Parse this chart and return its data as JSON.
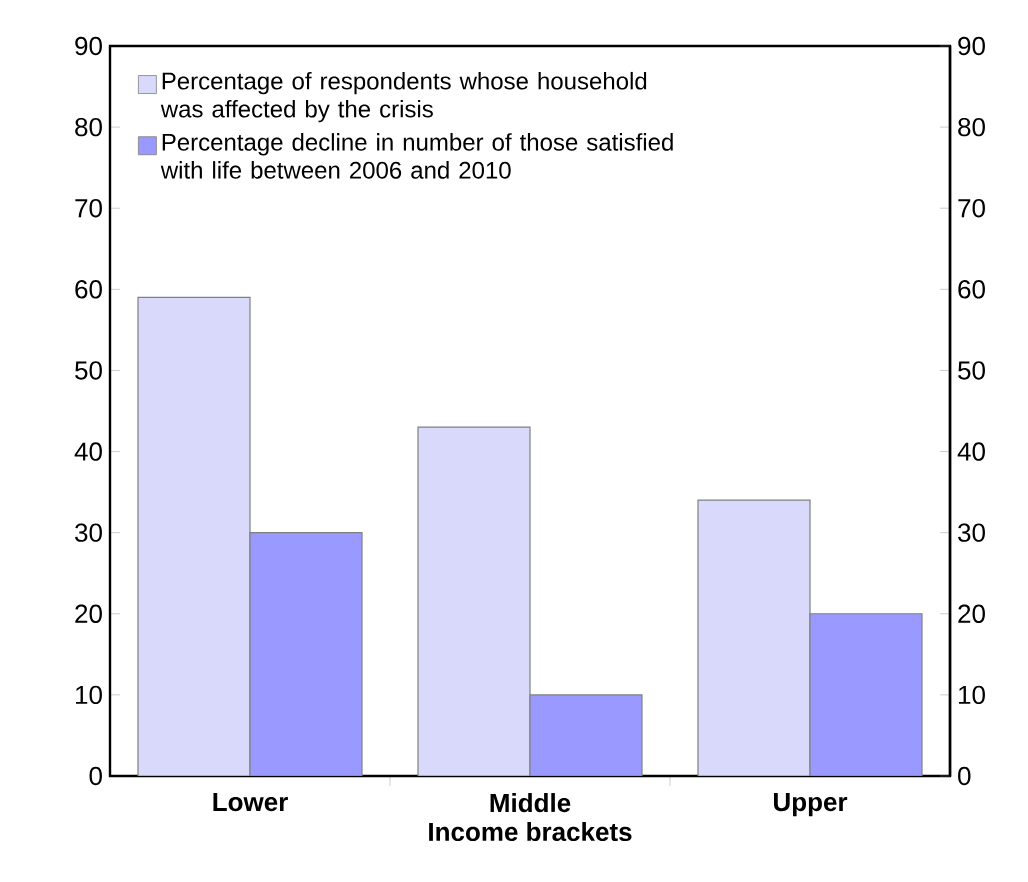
{
  "chart_data": {
    "type": "bar",
    "xlabel": "Income brackets",
    "categories": [
      "Lower",
      "Middle",
      "Upper"
    ],
    "series": [
      {
        "name": "Percentage of respondents whose household was affected by the crisis",
        "color": "#d9d9fb",
        "values": [
          59,
          43,
          34
        ]
      },
      {
        "name": "Percentage decline in number of those satisfied with life between 2006 and 2010",
        "color": "#9999ff",
        "values": [
          30,
          10,
          20
        ]
      }
    ],
    "ylim": [
      0,
      90
    ],
    "yticks": [
      0,
      10,
      20,
      30,
      40,
      50,
      60,
      70,
      80,
      90
    ],
    "y2lim": [
      0,
      90
    ],
    "y2ticks": [
      0,
      10,
      20,
      30,
      40,
      50,
      60,
      70,
      80,
      90
    ],
    "legend": "top left",
    "grid": false
  }
}
